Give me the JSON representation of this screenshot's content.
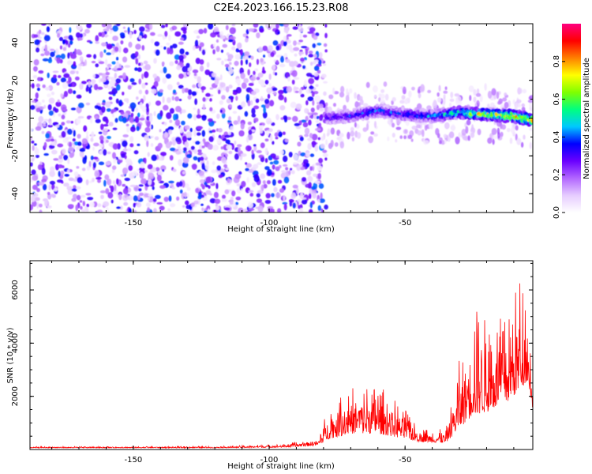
{
  "title": "C2E4.2023.166.15.23.R08",
  "chart_data": [
    {
      "type": "heatmap",
      "name": "spectrogram",
      "xlabel": "Height of straight line (km)",
      "ylabel": "Frequency (Hz)",
      "xlim": [
        -188,
        -3
      ],
      "ylim": [
        -50,
        50
      ],
      "xticks": [
        -150,
        -100,
        -50
      ],
      "yticks": [
        -40,
        -20,
        0,
        20,
        40
      ],
      "colorbar": {
        "label": "Normalized spectral amplitude",
        "range": [
          0,
          1
        ],
        "ticks": [
          0.0,
          0.2,
          0.4,
          0.6,
          0.8
        ],
        "colormap": [
          "#ffffff",
          "#e6ccff",
          "#b266ff",
          "#6a00ff",
          "#0000ff",
          "#00c8ff",
          "#00ff80",
          "#80ff00",
          "#ffff00",
          "#ff8000",
          "#ff0000",
          "#ff0080"
        ]
      },
      "noise_region": {
        "x_range": [
          -188,
          -79
        ],
        "freq_range": [
          -50,
          50
        ],
        "amplitude": 0.12
      },
      "signal_ridge": [
        {
          "height": -79,
          "freq": 0,
          "amp": 0.35
        },
        {
          "height": -70,
          "freq": 1,
          "amp": 0.4
        },
        {
          "height": -60,
          "freq": 4,
          "amp": 0.45
        },
        {
          "height": -50,
          "freq": 2,
          "amp": 0.42
        },
        {
          "height": -40,
          "freq": 1,
          "amp": 0.5
        },
        {
          "height": -30,
          "freq": 3,
          "amp": 0.65
        },
        {
          "height": -20,
          "freq": 2,
          "amp": 0.8
        },
        {
          "height": -10,
          "freq": 1,
          "amp": 0.92
        },
        {
          "height": -3,
          "freq": -1,
          "amp": 0.85
        }
      ]
    },
    {
      "type": "line",
      "name": "snr",
      "xlabel": "Height of straight line (km)",
      "ylabel": "SNR (10 * v/v)",
      "xlim": [
        -188,
        -3
      ],
      "ylim": [
        0,
        7100
      ],
      "xticks": [
        -150,
        -100,
        -50
      ],
      "yticks": [
        2000,
        4000,
        6000
      ],
      "color": "#ff0000",
      "envelope": [
        {
          "x": -188,
          "base": 60,
          "amp": 50
        },
        {
          "x": -120,
          "base": 60,
          "amp": 60
        },
        {
          "x": -95,
          "base": 80,
          "amp": 120
        },
        {
          "x": -82,
          "base": 150,
          "amp": 300
        },
        {
          "x": -78,
          "base": 400,
          "amp": 1300
        },
        {
          "x": -70,
          "base": 600,
          "amp": 1800
        },
        {
          "x": -60,
          "base": 600,
          "amp": 1900
        },
        {
          "x": -50,
          "base": 400,
          "amp": 1200
        },
        {
          "x": -45,
          "base": 300,
          "amp": 500
        },
        {
          "x": -35,
          "base": 250,
          "amp": 500
        },
        {
          "x": -30,
          "base": 800,
          "amp": 2600
        },
        {
          "x": -25,
          "base": 1300,
          "amp": 4200
        },
        {
          "x": -20,
          "base": 1400,
          "amp": 3500
        },
        {
          "x": -12,
          "base": 1800,
          "amp": 3200
        },
        {
          "x": -8,
          "base": 2200,
          "amp": 4400
        },
        {
          "x": -5,
          "base": 2600,
          "amp": 3600
        },
        {
          "x": -3,
          "base": 1500,
          "amp": 700
        }
      ]
    }
  ]
}
